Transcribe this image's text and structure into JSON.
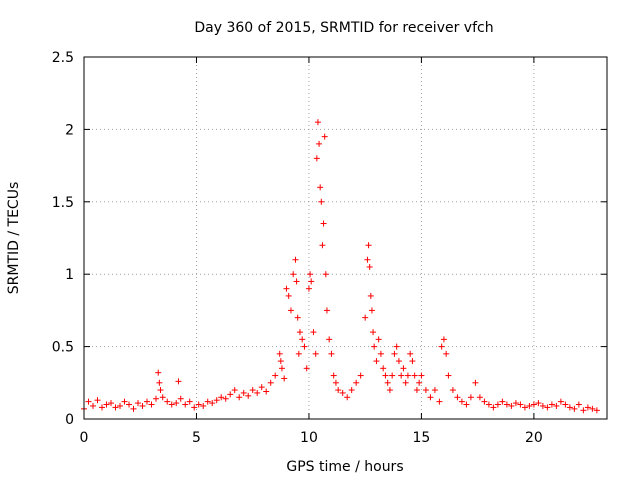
{
  "chart_data": {
    "type": "scatter",
    "title": "Day 360 of 2015, SRMTID for receiver vfch",
    "xlabel": "GPS time / hours",
    "ylabel": "SRMTID / TECUs",
    "xlim": [
      0,
      23.25
    ],
    "ylim": [
      0,
      2.5
    ],
    "x_ticks": [
      0,
      5,
      10,
      15,
      20
    ],
    "x_tick_labels": [
      "0",
      "5",
      "10",
      "15",
      "20"
    ],
    "y_ticks": [
      0,
      0.5,
      1,
      1.5,
      2,
      2.5
    ],
    "y_tick_labels": [
      "0",
      "0.5",
      "1",
      "1.5",
      "2",
      "2.5"
    ],
    "grid": true,
    "marker": "plus",
    "marker_color": "#ff0000",
    "series": [
      {
        "name": "SRMTID",
        "x": [
          0.0,
          0.2,
          0.4,
          0.6,
          0.8,
          1.0,
          1.2,
          1.4,
          1.6,
          1.8,
          2.0,
          2.2,
          2.4,
          2.6,
          2.8,
          3.0,
          3.2,
          3.3,
          3.35,
          3.4,
          3.5,
          3.7,
          3.9,
          4.1,
          4.2,
          4.3,
          4.5,
          4.7,
          4.9,
          5.1,
          5.3,
          5.5,
          5.7,
          5.9,
          6.1,
          6.3,
          6.5,
          6.7,
          6.9,
          7.1,
          7.3,
          7.5,
          7.7,
          7.9,
          8.1,
          8.3,
          8.5,
          8.7,
          8.75,
          8.8,
          8.9,
          9.0,
          9.1,
          9.2,
          9.3,
          9.4,
          9.45,
          9.5,
          9.55,
          9.6,
          9.7,
          9.8,
          9.9,
          10.0,
          10.05,
          10.1,
          10.2,
          10.3,
          10.35,
          10.4,
          10.45,
          10.5,
          10.55,
          10.6,
          10.65,
          10.7,
          10.75,
          10.8,
          10.9,
          11.0,
          11.1,
          11.2,
          11.3,
          11.5,
          11.7,
          11.9,
          12.1,
          12.3,
          12.5,
          12.6,
          12.65,
          12.7,
          12.75,
          12.8,
          12.85,
          12.9,
          13.0,
          13.1,
          13.2,
          13.3,
          13.4,
          13.5,
          13.6,
          13.7,
          13.8,
          13.9,
          14.0,
          14.1,
          14.2,
          14.3,
          14.4,
          14.5,
          14.6,
          14.7,
          14.8,
          14.9,
          15.0,
          15.2,
          15.4,
          15.6,
          15.8,
          15.9,
          16.0,
          16.1,
          16.2,
          16.4,
          16.6,
          16.8,
          17.0,
          17.2,
          17.4,
          17.6,
          17.8,
          18.0,
          18.2,
          18.4,
          18.6,
          18.8,
          19.0,
          19.2,
          19.4,
          19.6,
          19.8,
          20.0,
          20.2,
          20.4,
          20.6,
          20.8,
          21.0,
          21.2,
          21.4,
          21.6,
          21.8,
          22.0,
          22.2,
          22.4,
          22.6,
          22.8
        ],
        "y": [
          0.07,
          0.12,
          0.09,
          0.13,
          0.08,
          0.1,
          0.11,
          0.08,
          0.09,
          0.12,
          0.1,
          0.07,
          0.11,
          0.09,
          0.12,
          0.1,
          0.14,
          0.32,
          0.25,
          0.2,
          0.15,
          0.12,
          0.1,
          0.11,
          0.26,
          0.14,
          0.1,
          0.12,
          0.08,
          0.1,
          0.09,
          0.12,
          0.11,
          0.13,
          0.15,
          0.14,
          0.17,
          0.2,
          0.15,
          0.18,
          0.16,
          0.2,
          0.18,
          0.22,
          0.19,
          0.25,
          0.3,
          0.45,
          0.4,
          0.35,
          0.28,
          0.9,
          0.85,
          0.75,
          1.0,
          1.1,
          0.95,
          0.7,
          0.45,
          0.6,
          0.55,
          0.5,
          0.35,
          0.9,
          1.0,
          0.95,
          0.6,
          0.45,
          1.8,
          2.05,
          1.9,
          1.6,
          1.5,
          1.2,
          1.35,
          1.95,
          1.0,
          0.75,
          0.55,
          0.45,
          0.3,
          0.25,
          0.2,
          0.18,
          0.15,
          0.2,
          0.25,
          0.3,
          0.7,
          1.1,
          1.2,
          1.05,
          0.85,
          0.75,
          0.6,
          0.5,
          0.4,
          0.55,
          0.45,
          0.35,
          0.3,
          0.25,
          0.2,
          0.3,
          0.45,
          0.5,
          0.4,
          0.3,
          0.35,
          0.25,
          0.3,
          0.45,
          0.4,
          0.3,
          0.2,
          0.25,
          0.3,
          0.2,
          0.15,
          0.2,
          0.12,
          0.5,
          0.55,
          0.45,
          0.3,
          0.2,
          0.15,
          0.12,
          0.1,
          0.15,
          0.25,
          0.15,
          0.12,
          0.1,
          0.08,
          0.1,
          0.12,
          0.1,
          0.09,
          0.11,
          0.1,
          0.08,
          0.09,
          0.1,
          0.11,
          0.09,
          0.08,
          0.1,
          0.09,
          0.12,
          0.1,
          0.08,
          0.07,
          0.1,
          0.06,
          0.08,
          0.07,
          0.06
        ]
      }
    ]
  }
}
